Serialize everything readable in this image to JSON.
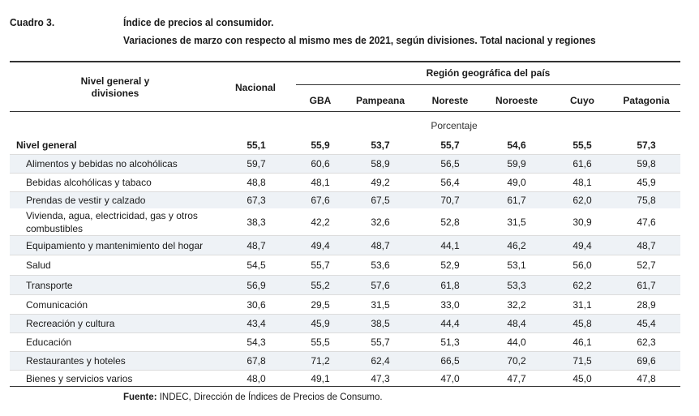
{
  "header": {
    "label": "Cuadro 3.",
    "title": "Índice de precios al consumidor.",
    "subtitle": "Variaciones de marzo con respecto al mismo mes de 2021, según divisiones. Total nacional y regiones"
  },
  "table": {
    "col_label_line1": "Nivel general y",
    "col_label_line2": "divisiones",
    "col_nacional": "Nacional",
    "region_group": "Región geográfica del país",
    "regions": [
      "GBA",
      "Pampeana",
      "Noreste",
      "Noroeste",
      "Cuyo",
      "Patagonia"
    ],
    "unit": "Porcentaje",
    "rows": [
      {
        "label": "Nivel general",
        "values": [
          "55,1",
          "55,9",
          "53,7",
          "55,7",
          "54,6",
          "55,5",
          "57,3"
        ]
      },
      {
        "label": "Alimentos y bebidas no alcohólicas",
        "values": [
          "59,7",
          "60,6",
          "58,9",
          "56,5",
          "59,9",
          "61,6",
          "59,8"
        ]
      },
      {
        "label": "Bebidas alcohólicas y tabaco",
        "values": [
          "48,8",
          "48,1",
          "49,2",
          "56,4",
          "49,0",
          "48,1",
          "45,9"
        ]
      },
      {
        "label": "Prendas de vestir y calzado",
        "values": [
          "67,3",
          "67,6",
          "67,5",
          "70,7",
          "61,7",
          "62,0",
          "75,8"
        ]
      },
      {
        "label": "Vivienda, agua, electricidad, gas y otros",
        "label2": "combustibles",
        "values": [
          "38,3",
          "42,2",
          "32,6",
          "52,8",
          "31,5",
          "30,9",
          "47,6"
        ]
      },
      {
        "label": "Equipamiento y mantenimiento del hogar",
        "values": [
          "48,7",
          "49,4",
          "48,7",
          "44,1",
          "46,2",
          "49,4",
          "48,7"
        ]
      },
      {
        "label": "Salud",
        "values": [
          "54,5",
          "55,7",
          "53,6",
          "52,9",
          "53,1",
          "56,0",
          "52,7"
        ]
      },
      {
        "label": "Transporte",
        "values": [
          "56,9",
          "55,2",
          "57,6",
          "61,8",
          "53,3",
          "62,2",
          "61,7"
        ]
      },
      {
        "label": "Comunicación",
        "values": [
          "30,6",
          "29,5",
          "31,5",
          "33,0",
          "32,2",
          "31,1",
          "28,9"
        ]
      },
      {
        "label": "Recreación y cultura",
        "values": [
          "43,4",
          "45,9",
          "38,5",
          "44,4",
          "48,4",
          "45,8",
          "45,4"
        ]
      },
      {
        "label": "Educación",
        "values": [
          "54,3",
          "55,5",
          "55,7",
          "51,3",
          "44,0",
          "46,1",
          "62,3"
        ]
      },
      {
        "label": "Restaurantes y hoteles",
        "values": [
          "67,8",
          "71,2",
          "62,4",
          "66,5",
          "70,2",
          "71,5",
          "69,6"
        ]
      },
      {
        "label": "Bienes y servicios varios",
        "values": [
          "48,0",
          "49,1",
          "47,3",
          "47,0",
          "47,7",
          "45,0",
          "47,8"
        ]
      }
    ]
  },
  "source": {
    "label": "Fuente:",
    "text": "INDEC, Dirección de Índices de Precios de Consumo."
  }
}
